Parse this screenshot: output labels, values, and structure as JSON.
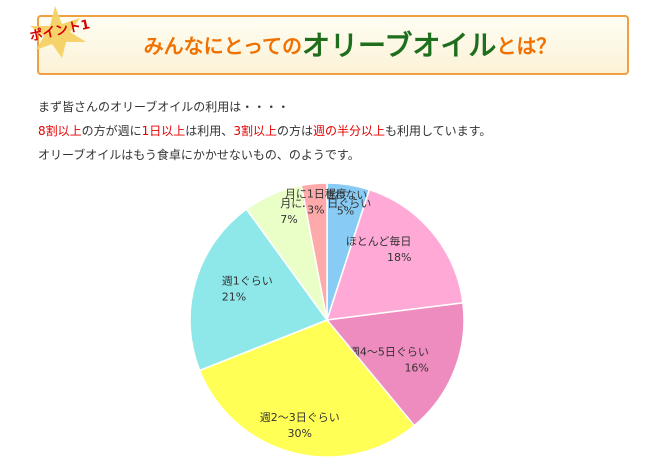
{
  "header": {
    "badge": "ポイント1",
    "title": [
      "みんなにとっての",
      "オリーブオイル",
      "とは？"
    ]
  },
  "intro": {
    "lines": [
      [
        {
          "text": "まず皆さんのオリーブオイルの利用は・・・・"
        }
      ],
      [
        {
          "text": "8割以上",
          "color": "#e60000"
        },
        {
          "text": "の方が週に"
        },
        {
          "text": "1日以上",
          "color": "#e60000"
        },
        {
          "text": "は利用、"
        },
        {
          "text": "3割以上",
          "color": "#e60000"
        },
        {
          "text": "の方は"
        },
        {
          "text": "週の半分以上",
          "color": "#e60000"
        },
        {
          "text": "も利用しています。"
        }
      ],
      [
        {
          "text": "オリーブオイルはもう食卓にかかせないもの、のようです。"
        }
      ]
    ]
  },
  "chart_data": {
    "type": "pie",
    "categories": [
      "使わない",
      "ほとんど毎日",
      "週4～5日ぐらい",
      "週2～3日ぐらい",
      "週1ぐらい",
      "月に2～3日ぐらい",
      "月に1日程度"
    ],
    "values": [
      5,
      18,
      16,
      30,
      21,
      7,
      3
    ],
    "value_labels": [
      "5%",
      "18%",
      "16%",
      "30%",
      "21%",
      "7%",
      "3%"
    ],
    "colors": [
      "#88ccf5",
      "#ffaad6",
      "#ee8cbf",
      "#ffff55",
      "#8ee8ea",
      "#eaffc8",
      "#ffaaaa"
    ]
  }
}
